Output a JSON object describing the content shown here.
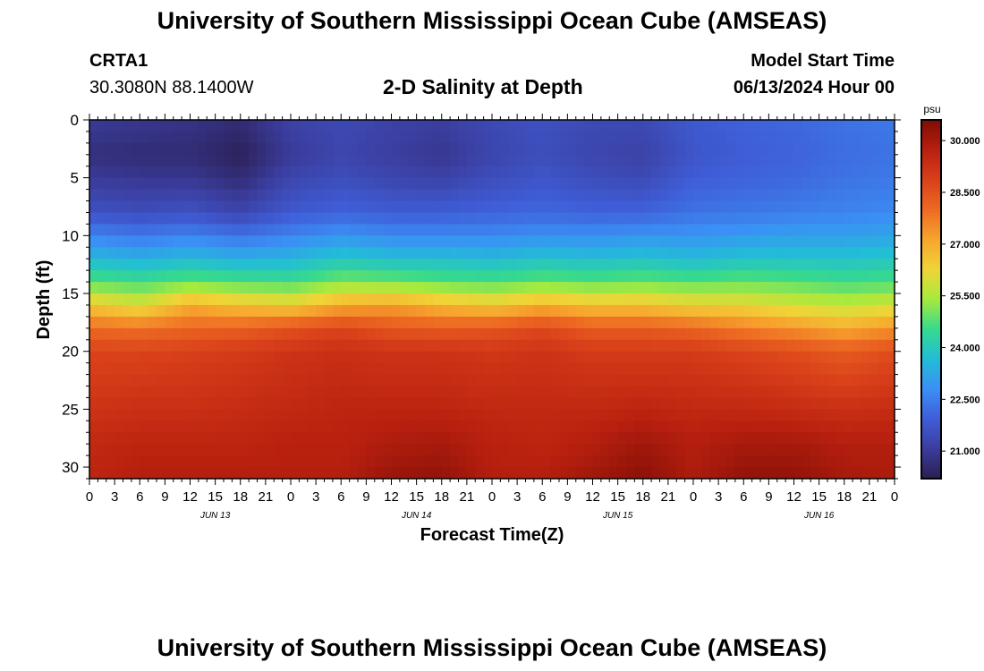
{
  "header": {
    "title": "University of Southern Mississippi Ocean Cube (AMSEAS)",
    "station_id": "CRTA1",
    "coords": "30.3080N  88.1400W",
    "chart_title": "2-D Salinity at Depth",
    "model_start_label": "Model Start Time",
    "model_start_value": "06/13/2024 Hour 00"
  },
  "footer": {
    "title": "University of Southern Mississippi Ocean Cube (AMSEAS)"
  },
  "colors": {
    "scale": [
      "#2a1e52",
      "#3b3d9d",
      "#3f5ed8",
      "#3b8ff5",
      "#22bdd7",
      "#36d98e",
      "#a6ea3e",
      "#f0d437",
      "#f7a52e",
      "#ed6a22",
      "#d9401a",
      "#b8200f",
      "#7e0d06"
    ]
  },
  "chart_data": {
    "type": "heatmap",
    "title": "2-D Salinity at Depth",
    "xlabel": "Forecast Time(Z)",
    "ylabel": "Depth (ft)",
    "x_ticks": [
      "0",
      "3",
      "6",
      "9",
      "12",
      "15",
      "18",
      "21",
      "0",
      "3",
      "6",
      "9",
      "12",
      "15",
      "18",
      "21",
      "0",
      "3",
      "6",
      "9",
      "12",
      "15",
      "18",
      "21",
      "0",
      "3",
      "6",
      "9",
      "12",
      "15",
      "18",
      "21",
      "0"
    ],
    "day_labels": [
      {
        "label": "JUN 13",
        "hour": 15
      },
      {
        "label": "JUN 14",
        "hour": 39
      },
      {
        "label": "JUN 15",
        "hour": 63
      },
      {
        "label": "JUN 16",
        "hour": 87
      }
    ],
    "x_range_hours": [
      0,
      96
    ],
    "y_ticks": [
      0,
      5,
      10,
      15,
      20,
      25,
      30
    ],
    "y_range_ft": [
      0,
      31
    ],
    "colorbar": {
      "unit": "psu",
      "labels": [
        "30.000",
        "28.500",
        "27.000",
        "25.500",
        "24.000",
        "22.500",
        "21.000"
      ],
      "range": [
        20.2,
        30.6
      ]
    },
    "salinity_profiles": [
      {
        "hour": 0,
        "depths": [
          0,
          3,
          5,
          8,
          10,
          12,
          14,
          16,
          18,
          20,
          25,
          28,
          31
        ],
        "values": [
          21.0,
          20.7,
          21.0,
          21.6,
          22.6,
          23.6,
          24.8,
          26.5,
          28.0,
          28.8,
          29.2,
          29.5,
          29.6
        ]
      },
      {
        "hour": 6,
        "depths": [
          0,
          3,
          5,
          8,
          10,
          12,
          14,
          16,
          18,
          20,
          25,
          28,
          31
        ],
        "values": [
          20.9,
          20.6,
          20.9,
          21.5,
          22.4,
          23.4,
          24.6,
          26.0,
          27.9,
          28.8,
          29.3,
          29.6,
          29.8
        ]
      },
      {
        "hour": 12,
        "depths": [
          0,
          3,
          5,
          8,
          10,
          12,
          14,
          16,
          18,
          20,
          25,
          28,
          31
        ],
        "values": [
          20.8,
          20.6,
          20.9,
          21.6,
          22.6,
          23.6,
          24.9,
          27.0,
          28.1,
          28.9,
          29.3,
          29.6,
          29.8
        ]
      },
      {
        "hour": 18,
        "depths": [
          0,
          3,
          5,
          8,
          10,
          12,
          14,
          16,
          18,
          20,
          25,
          28,
          31
        ],
        "values": [
          20.6,
          20.3,
          20.6,
          21.3,
          22.3,
          23.4,
          24.7,
          26.6,
          28.2,
          29.0,
          29.4,
          29.6,
          29.8
        ]
      },
      {
        "hour": 24,
        "depths": [
          0,
          3,
          5,
          8,
          10,
          12,
          14,
          16,
          18,
          20,
          25,
          28,
          31
        ],
        "values": [
          21.2,
          21.0,
          21.3,
          21.8,
          22.6,
          23.5,
          24.6,
          26.4,
          28.5,
          29.2,
          29.5,
          29.7,
          29.8
        ]
      },
      {
        "hour": 30,
        "depths": [
          0,
          3,
          5,
          8,
          10,
          12,
          14,
          16,
          18,
          20,
          25,
          28,
          31
        ],
        "values": [
          21.4,
          21.3,
          21.5,
          22.0,
          22.9,
          23.9,
          25.1,
          27.0,
          28.8,
          29.3,
          29.6,
          29.7,
          29.8
        ]
      },
      {
        "hour": 36,
        "depths": [
          0,
          3,
          5,
          8,
          10,
          12,
          14,
          16,
          18,
          20,
          25,
          28,
          31
        ],
        "values": [
          21.2,
          21.1,
          21.3,
          21.9,
          22.7,
          23.7,
          25.0,
          27.2,
          28.4,
          29.2,
          29.6,
          29.9,
          30.2
        ]
      },
      {
        "hour": 42,
        "depths": [
          0,
          3,
          5,
          8,
          10,
          12,
          14,
          16,
          18,
          20,
          25,
          28,
          31
        ],
        "values": [
          21.1,
          20.9,
          21.2,
          21.9,
          22.7,
          23.7,
          24.8,
          26.8,
          28.3,
          29.2,
          29.6,
          30.0,
          30.3
        ]
      },
      {
        "hour": 48,
        "depths": [
          0,
          3,
          5,
          8,
          10,
          12,
          14,
          16,
          18,
          20,
          25,
          28,
          31
        ],
        "values": [
          21.4,
          21.3,
          21.5,
          22.0,
          22.7,
          23.6,
          24.7,
          26.5,
          28.4,
          29.1,
          29.5,
          29.7,
          29.8
        ]
      },
      {
        "hour": 54,
        "depths": [
          0,
          3,
          5,
          8,
          10,
          12,
          14,
          16,
          18,
          20,
          25,
          28,
          31
        ],
        "values": [
          21.6,
          21.5,
          21.7,
          22.1,
          22.8,
          23.8,
          24.9,
          26.9,
          28.7,
          29.2,
          29.5,
          29.6,
          29.8
        ]
      },
      {
        "hour": 60,
        "depths": [
          0,
          3,
          5,
          8,
          10,
          12,
          14,
          16,
          18,
          20,
          25,
          28,
          31
        ],
        "values": [
          21.4,
          21.3,
          21.5,
          22.0,
          22.8,
          23.7,
          24.8,
          26.6,
          28.3,
          29.0,
          29.5,
          29.8,
          30.1
        ]
      },
      {
        "hour": 66,
        "depths": [
          0,
          3,
          5,
          8,
          10,
          12,
          14,
          16,
          18,
          20,
          25,
          28,
          31
        ],
        "values": [
          21.4,
          21.2,
          21.4,
          22.0,
          22.9,
          23.8,
          24.9,
          26.6,
          28.3,
          29.0,
          29.6,
          30.1,
          30.4
        ]
      },
      {
        "hour": 72,
        "depths": [
          0,
          3,
          5,
          8,
          10,
          12,
          14,
          16,
          18,
          20,
          25,
          28,
          31
        ],
        "values": [
          21.8,
          21.7,
          21.9,
          22.3,
          22.9,
          23.6,
          24.8,
          26.3,
          28.1,
          29.0,
          29.5,
          29.8,
          29.9
        ]
      },
      {
        "hour": 78,
        "depths": [
          0,
          3,
          5,
          8,
          10,
          12,
          14,
          16,
          18,
          20,
          25,
          28,
          31
        ],
        "values": [
          22.0,
          21.9,
          22.0,
          22.4,
          23.0,
          23.8,
          24.9,
          26.2,
          27.7,
          28.8,
          29.5,
          30.0,
          30.3
        ]
      },
      {
        "hour": 84,
        "depths": [
          0,
          3,
          5,
          8,
          10,
          12,
          14,
          16,
          18,
          20,
          25,
          28,
          31
        ],
        "values": [
          22.1,
          22.0,
          22.1,
          22.5,
          23.1,
          23.8,
          24.8,
          25.9,
          27.4,
          28.6,
          29.4,
          30.0,
          30.3
        ]
      },
      {
        "hour": 90,
        "depths": [
          0,
          3,
          5,
          8,
          10,
          12,
          14,
          16,
          18,
          20,
          25,
          28,
          31
        ],
        "values": [
          22.3,
          22.2,
          22.3,
          22.6,
          23.1,
          23.8,
          24.6,
          25.7,
          27.0,
          28.3,
          29.3,
          29.8,
          30.0
        ]
      },
      {
        "hour": 96,
        "depths": [
          0,
          3,
          5,
          8,
          10,
          12,
          14,
          16,
          18,
          20,
          25,
          28,
          31
        ],
        "values": [
          22.4,
          22.3,
          22.4,
          22.7,
          23.2,
          23.9,
          24.7,
          25.9,
          27.4,
          28.6,
          29.4,
          29.8,
          29.9
        ]
      }
    ]
  }
}
